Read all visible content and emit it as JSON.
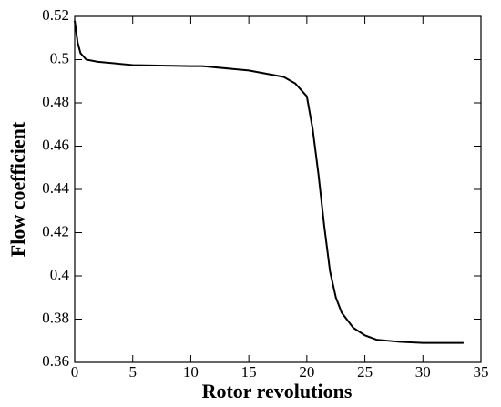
{
  "chart_data": {
    "type": "line",
    "x_label": "Rotor revolutions",
    "y_label": "Flow coefficient",
    "x": [
      0,
      0.25,
      0.5,
      1,
      2,
      5,
      10,
      11,
      15,
      18,
      19,
      20,
      20.5,
      21,
      21.5,
      22,
      22.5,
      23,
      24,
      25,
      26,
      28,
      30,
      33.5
    ],
    "values": [
      0.518,
      0.508,
      0.503,
      0.5,
      0.499,
      0.4975,
      0.497,
      0.497,
      0.495,
      0.492,
      0.489,
      0.483,
      0.468,
      0.447,
      0.423,
      0.402,
      0.39,
      0.383,
      0.376,
      0.3725,
      0.3705,
      0.3695,
      0.369,
      0.369
    ],
    "color": "#000000",
    "xlim": [
      0,
      35
    ],
    "xticks": [
      0,
      5,
      10,
      15,
      20,
      25,
      30,
      35
    ],
    "ylim": [
      0.36,
      0.52
    ],
    "yticks": [
      0.36,
      0.38,
      0.4,
      0.42,
      0.44,
      0.46,
      0.48,
      0.5,
      0.52
    ]
  }
}
